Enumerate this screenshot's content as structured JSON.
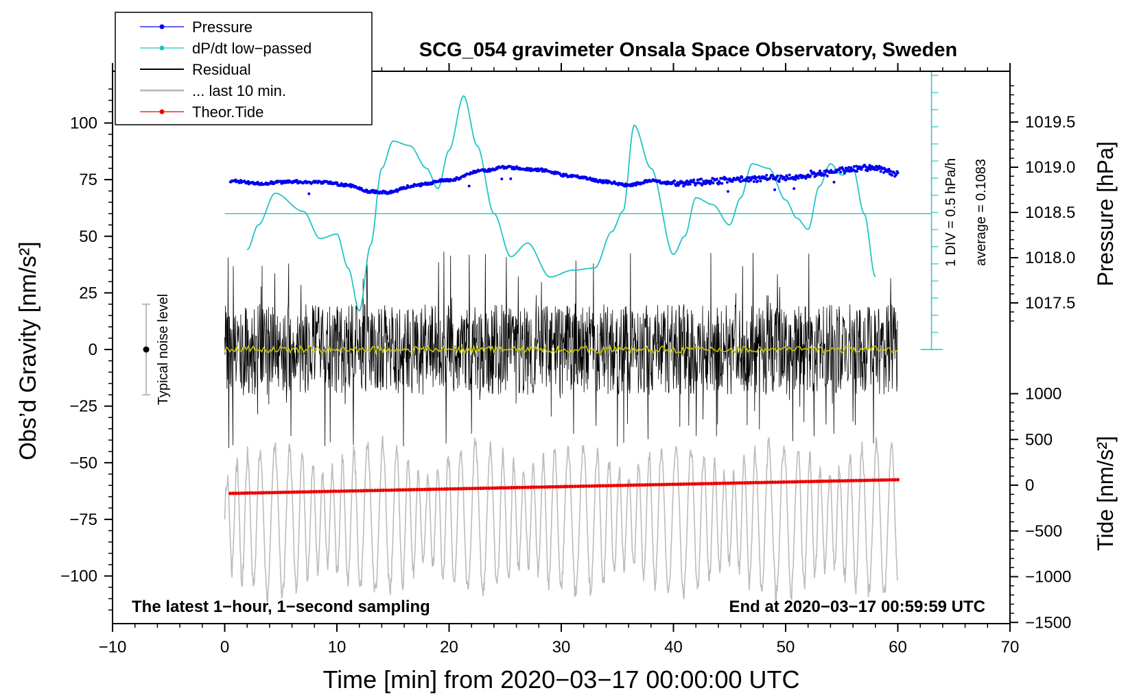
{
  "chart_data": {
    "type": "line",
    "title": "SCG_054 gravimeter Onsala Space Observatory, Sweden",
    "xlabel": "Time [min] from 2020−03−17 00:00:00 UTC",
    "ylabel_left": "Obs’d Gravity [nm/s²]",
    "ylabel_right_top": "Pressure [hPa]",
    "ylabel_right_bottom": "Tide [nm/s²]",
    "xlim": [
      -10,
      70
    ],
    "ylim": [
      -120,
      120
    ],
    "pressure_ylim": [
      1017.0,
      1020.0
    ],
    "tide_ylim": [
      -1500,
      1000
    ],
    "x_ticks": [
      "−10",
      "0",
      "10",
      "20",
      "30",
      "40",
      "50",
      "60",
      "70"
    ],
    "x_tick_values": [
      -10,
      0,
      10,
      20,
      30,
      40,
      50,
      60,
      70
    ],
    "y_ticks": [
      "100",
      "75",
      "50",
      "25",
      "0",
      "−25",
      "−50",
      "−75",
      "−100"
    ],
    "y_tick_values": [
      100,
      75,
      50,
      25,
      0,
      -25,
      -50,
      -75,
      -100
    ],
    "pressure_ticks": [
      "1019.5",
      "1019.0",
      "1018.5",
      "1018.0",
      "1017.5"
    ],
    "pressure_tick_values": [
      1019.5,
      1019.0,
      1018.5,
      1018.0,
      1017.5
    ],
    "tide_ticks": [
      "1000",
      "500",
      "0",
      "−500",
      "−1000",
      "−1500"
    ],
    "tide_tick_values": [
      1000,
      500,
      0,
      -500,
      -1000,
      -1500
    ],
    "legend": {
      "position": "top-left",
      "entries": [
        {
          "label": "Pressure",
          "color": "#0000ee",
          "marker": "dot"
        },
        {
          "label": "dP/dt low−passed",
          "color": "#22c4c4",
          "marker": "dot"
        },
        {
          "label": "Residual",
          "color": "#000000",
          "marker": "none"
        },
        {
          "label": "... last 10 min.",
          "color": "#bbbbbb",
          "marker": "none"
        },
        {
          "label": "Theor.Tide",
          "color": "#ee0000",
          "marker": "dot"
        }
      ]
    },
    "annotations": {
      "bottom_left": "The latest 1−hour, 1−second sampling",
      "bottom_right": "End at 2020−03−17 00:59:59 UTC",
      "noise_label": "Typical noise level",
      "scale_div": "1 DIV = 0.5 hPa/h",
      "scale_avg": "average = 0.1083"
    },
    "noise_bar": {
      "x": -7,
      "center": 0,
      "half_range": 20
    },
    "dpdt_scale": {
      "x": 63,
      "zero_level": 60,
      "div_hpa_per_h": 0.5,
      "average": 0.1083
    },
    "series": [
      {
        "name": "Pressure",
        "axis": "pressure",
        "color": "#0000ee",
        "x": [
          0.5,
          3,
          6,
          9,
          11,
          13,
          14.5,
          17,
          20,
          23,
          25,
          28,
          31,
          34,
          36,
          38,
          40,
          43,
          46,
          50,
          53,
          56,
          58,
          60
        ],
        "values": [
          1018.85,
          1018.82,
          1018.84,
          1018.83,
          1018.8,
          1018.73,
          1018.72,
          1018.8,
          1018.86,
          1018.96,
          1019.0,
          1018.97,
          1018.9,
          1018.84,
          1018.8,
          1018.85,
          1018.82,
          1018.84,
          1018.87,
          1018.88,
          1018.93,
          1018.98,
          1019.0,
          1018.92
        ]
      },
      {
        "name": "dP/dt low−passed",
        "axis": "gravity",
        "color": "#22c4c4",
        "x": [
          2,
          3,
          4.5,
          7,
          8.5,
          10,
          11,
          12,
          13,
          14,
          15,
          16.5,
          18,
          19,
          20,
          21.3,
          22.5,
          24,
          25.5,
          27,
          29,
          31,
          33,
          34.5,
          35.5,
          36.5,
          38,
          40,
          41,
          42,
          43.5,
          45,
          46,
          47,
          48.5,
          50,
          51,
          52,
          53,
          54,
          55,
          56,
          57,
          58
        ],
        "values": [
          44,
          55,
          69,
          61,
          49,
          51,
          36,
          17,
          46,
          80,
          92,
          90,
          80,
          71,
          88,
          112,
          90,
          60,
          41,
          47,
          32,
          35,
          36,
          52,
          61,
          99,
          80,
          42,
          50,
          67,
          64,
          55,
          67,
          82,
          80,
          66,
          58,
          53,
          72,
          82,
          77,
          80,
          60,
          32
        ]
      },
      {
        "name": "Residual",
        "axis": "gravity",
        "color": "#000000",
        "x_start": 0,
        "x_end": 60,
        "noise_amplitude": 20,
        "envelope_max": 50
      },
      {
        "name": "... last 10 min.",
        "axis": "gravity",
        "color": "#bbbbbb",
        "x_start": 0,
        "x_end": 60,
        "center": -75,
        "amplitude": 25,
        "envelope_max": 45
      },
      {
        "name": "Theor.Tide",
        "axis": "tide",
        "color": "#ee0000",
        "x": [
          0.5,
          60
        ],
        "values": [
          -90,
          60
        ]
      },
      {
        "name": "Residual smoothed",
        "axis": "gravity",
        "color": "#c8c800",
        "x_start": 0,
        "x_end": 60,
        "center": 0,
        "amplitude": 1.5
      }
    ]
  }
}
